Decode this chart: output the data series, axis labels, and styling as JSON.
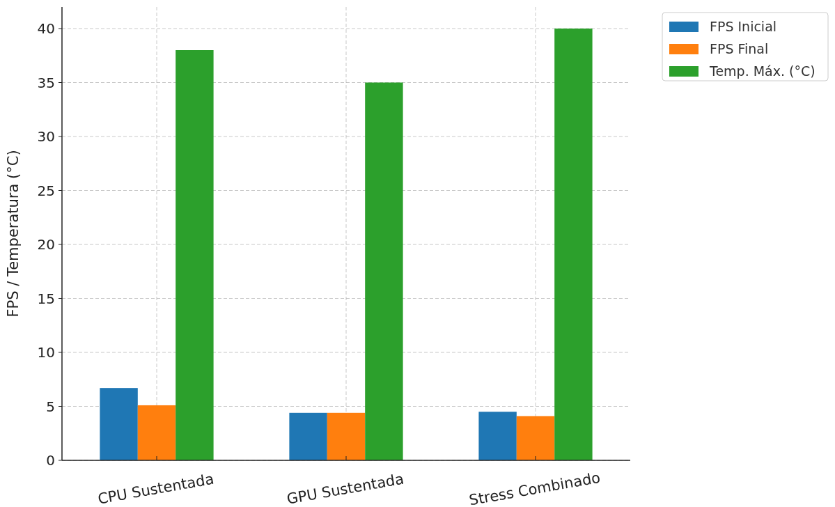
{
  "chart_data": {
    "type": "bar",
    "ylabel": "FPS / Temperatura (°C)",
    "categories": [
      "CPU Sustentada",
      "GPU Sustentada",
      "Stress Combinado"
    ],
    "series": [
      {
        "name": "FPS Inicial",
        "color": "#1f77b4",
        "values": [
          6.7,
          4.4,
          4.5
        ]
      },
      {
        "name": "FPS Final",
        "color": "#ff7f0e",
        "values": [
          5.1,
          4.4,
          4.1
        ]
      },
      {
        "name": "Temp. Máx. (°C)",
        "color": "#2ca02c",
        "values": [
          38,
          35,
          40
        ]
      }
    ],
    "ylim": [
      0,
      42
    ],
    "yticks": [
      0,
      5,
      10,
      15,
      20,
      25,
      30,
      35,
      40
    ],
    "grid": true,
    "legend": "top right"
  }
}
